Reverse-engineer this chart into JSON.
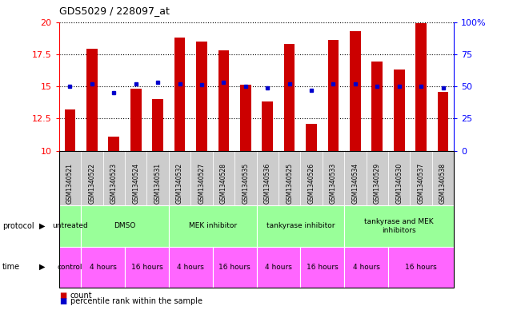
{
  "title": "GDS5029 / 228097_at",
  "samples": [
    "GSM1340521",
    "GSM1340522",
    "GSM1340523",
    "GSM1340524",
    "GSM1340531",
    "GSM1340532",
    "GSM1340527",
    "GSM1340528",
    "GSM1340535",
    "GSM1340536",
    "GSM1340525",
    "GSM1340526",
    "GSM1340533",
    "GSM1340534",
    "GSM1340529",
    "GSM1340530",
    "GSM1340537",
    "GSM1340538"
  ],
  "counts": [
    13.2,
    17.9,
    11.1,
    14.8,
    14.0,
    18.8,
    18.5,
    17.8,
    15.1,
    13.8,
    18.3,
    12.1,
    18.6,
    19.3,
    16.9,
    16.3,
    19.9,
    14.6
  ],
  "percentile_ranks": [
    50,
    52,
    45,
    52,
    53,
    52,
    51,
    53,
    50,
    49,
    52,
    47,
    52,
    52,
    50,
    50,
    50,
    49
  ],
  "ylim_left": [
    10,
    20
  ],
  "ylim_right": [
    0,
    100
  ],
  "yticks_left": [
    10,
    12.5,
    15,
    17.5,
    20
  ],
  "yticks_right": [
    0,
    25,
    50,
    75,
    100
  ],
  "bar_color": "#CC0000",
  "dot_color": "#0000CC",
  "protocol_labels": [
    "untreated",
    "DMSO",
    "MEK inhibitor",
    "tankyrase inhibitor",
    "tankyrase and MEK\ninhibitors"
  ],
  "protocol_cell_sizes": [
    1,
    4,
    4,
    4,
    5
  ],
  "protocol_color_light": "#99FF99",
  "protocol_color_bright": "#33CC33",
  "time_labels": [
    "control",
    "4 hours",
    "16 hours",
    "4 hours",
    "16 hours",
    "4 hours",
    "16 hours",
    "4 hours",
    "16 hours"
  ],
  "time_cell_sizes": [
    1,
    2,
    2,
    2,
    2,
    2,
    2,
    2,
    3
  ],
  "time_color": "#FF66FF",
  "legend_count_color": "#CC0000",
  "legend_dot_color": "#0000CC",
  "background_color": "#FFFFFF",
  "plot_bg_color": "#FFFFFF",
  "tick_bg_color": "#CCCCCC",
  "grid_color": "#000000"
}
